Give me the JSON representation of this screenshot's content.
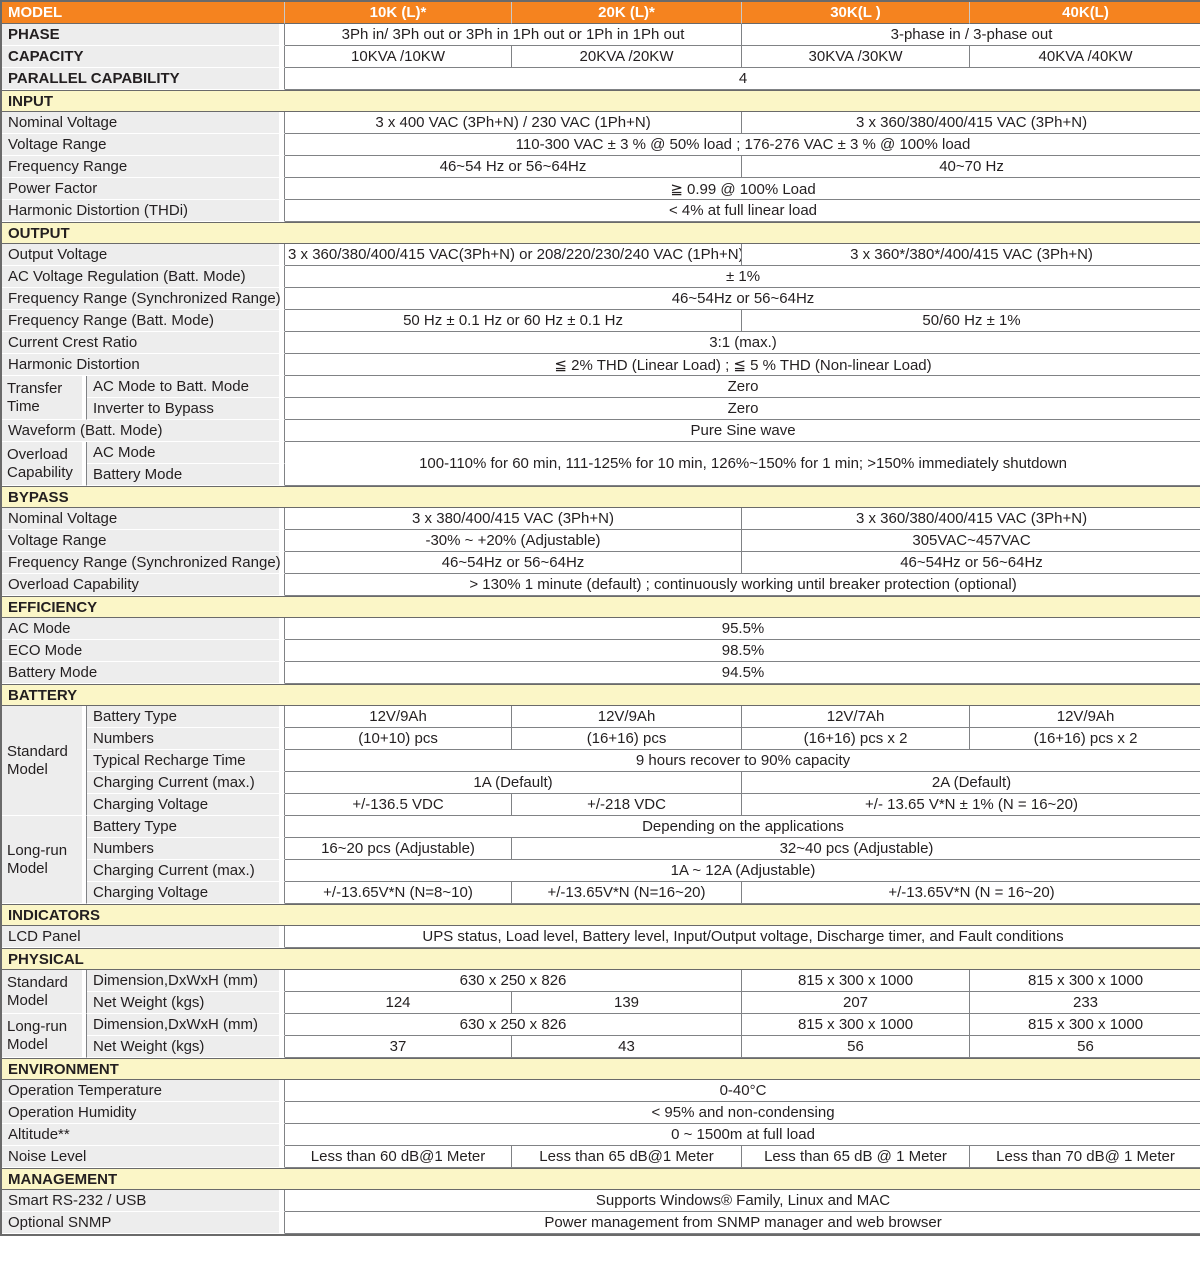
{
  "colors": {
    "header_bg": "#F5831F",
    "header_text": "#FFFFFF",
    "section_bg": "#FBF6C7",
    "label_bg": "#EDEDED",
    "border": "#808285",
    "outer_border": "#6A6A6A",
    "text": "#231F20"
  },
  "header": {
    "label": "MODEL",
    "models": [
      "10K (L)*",
      "20K (L)*",
      "30K(L )",
      "40K(L)"
    ]
  },
  "sections": [
    {
      "title": null,
      "bold": true,
      "rows": [
        {
          "label": "PHASE",
          "cells": [
            {
              "t": "3Ph in/ 3Ph out or 3Ph in 1Ph out or 1Ph in 1Ph out",
              "s": 2
            },
            {
              "t": "3-phase in / 3-phase out",
              "s": 2
            }
          ]
        },
        {
          "label": "CAPACITY",
          "cells": [
            {
              "t": "10KVA /10KW"
            },
            {
              "t": "20KVA /20KW"
            },
            {
              "t": "30KVA /30KW"
            },
            {
              "t": "40KVA /40KW"
            }
          ]
        },
        {
          "label": "PARALLEL CAPABILITY",
          "cells": [
            {
              "t": "4",
              "s": 4
            }
          ]
        }
      ]
    },
    {
      "title": "INPUT",
      "rows": [
        {
          "label": "Nominal Voltage",
          "cells": [
            {
              "t": "3 x 400 VAC (3Ph+N) / 230 VAC (1Ph+N)",
              "s": 2
            },
            {
              "t": "3 x 360/380/400/415 VAC  (3Ph+N)",
              "s": 2
            }
          ]
        },
        {
          "label": "Voltage Range",
          "cells": [
            {
              "t": "110-300 VAC ± 3 % @ 50% load ; 176-276 VAC ± 3 % @ 100% load",
              "s": 4
            }
          ]
        },
        {
          "label": "Frequency Range",
          "cells": [
            {
              "t": "46~54 Hz or 56~64Hz",
              "s": 2
            },
            {
              "t": "40~70 Hz",
              "s": 2
            }
          ]
        },
        {
          "label": "Power Factor",
          "cells": [
            {
              "t": "≧  0.99  @ 100% Load",
              "s": 4
            }
          ]
        },
        {
          "label": "Harmonic Distortion (THDi)",
          "cells": [
            {
              "t": "< 4% at full linear load",
              "s": 4
            }
          ]
        }
      ]
    },
    {
      "title": "OUTPUT",
      "rows": [
        {
          "label": "Output Voltage",
          "cells": [
            {
              "t": "3 x 360/380/400/415 VAC(3Ph+N) or 208/220/230/240 VAC (1Ph+N)",
              "s": 2
            },
            {
              "t": "3 x 360*/380*/400/415 VAC (3Ph+N)",
              "s": 2
            }
          ]
        },
        {
          "label": "AC Voltage Regulation (Batt. Mode)",
          "cells": [
            {
              "t": "± 1%",
              "s": 4
            }
          ]
        },
        {
          "label": "Frequency Range (Synchronized Range)",
          "cells": [
            {
              "t": "46~54Hz or 56~64Hz",
              "s": 4
            }
          ]
        },
        {
          "label": "Frequency Range (Batt. Mode)",
          "cells": [
            {
              "t": "50 Hz ± 0.1 Hz or 60 Hz ± 0.1 Hz",
              "s": 2
            },
            {
              "t": "50/60 Hz ± 1%",
              "s": 2
            }
          ]
        },
        {
          "label": "Current Crest Ratio",
          "cells": [
            {
              "t": "3:1 (max.)",
              "s": 4
            }
          ]
        },
        {
          "label": "Harmonic Distortion",
          "cells": [
            {
              "t": "≦ 2% THD (Linear Load) ; ≦ 5 % THD (Non-linear Load)",
              "s": 4
            }
          ]
        },
        {
          "group": "Transfer Time",
          "grows": 2,
          "label": "AC Mode to Batt. Mode",
          "cells": [
            {
              "t": "Zero",
              "s": 4
            }
          ]
        },
        {
          "label": "Inverter to Bypass",
          "cells": [
            {
              "t": "Zero",
              "s": 4
            }
          ]
        },
        {
          "label": "Waveform (Batt. Mode)",
          "cells": [
            {
              "t": "Pure Sine wave",
              "s": 4
            }
          ]
        },
        {
          "group": "Overload Capability",
          "grows": 2,
          "label": "AC Mode",
          "cells": [
            {
              "t": "100-110% for 60 min, 111-125% for 10 min, 126%~150% for 1 min; >150% immediately shutdown",
              "s": 4,
              "r": 2
            }
          ]
        },
        {
          "label": "Battery Mode",
          "cells": []
        }
      ]
    },
    {
      "title": "BYPASS",
      "rows": [
        {
          "label": "Nominal Voltage",
          "cells": [
            {
              "t": "3 x 380/400/415 VAC (3Ph+N)",
              "s": 2
            },
            {
              "t": "3 x 360/380/400/415 VAC (3Ph+N)",
              "s": 2
            }
          ]
        },
        {
          "label": "Voltage Range",
          "cells": [
            {
              "t": "-30% ~ +20% (Adjustable)",
              "s": 2
            },
            {
              "t": "305VAC~457VAC",
              "s": 2
            }
          ]
        },
        {
          "label": "Frequency Range (Synchronized Range)",
          "cells": [
            {
              "t": "46~54Hz or 56~64Hz",
              "s": 2
            },
            {
              "t": "46~54Hz or 56~64Hz",
              "s": 2
            }
          ]
        },
        {
          "label": "Overload Capability",
          "cells": [
            {
              "t": "> 130% 1 minute (default) ; continuously working until breaker protection (optional)",
              "s": 4
            }
          ]
        }
      ]
    },
    {
      "title": "EFFICIENCY",
      "rows": [
        {
          "label": "AC Mode",
          "cells": [
            {
              "t": "95.5%",
              "s": 4
            }
          ]
        },
        {
          "label": "ECO Mode",
          "cells": [
            {
              "t": "98.5%",
              "s": 4
            }
          ]
        },
        {
          "label": "Battery Mode",
          "cells": [
            {
              "t": "94.5%",
              "s": 4
            }
          ]
        }
      ]
    },
    {
      "title": "BATTERY",
      "rows": [
        {
          "group": "Standard Model",
          "grows": 5,
          "label": "Battery Type",
          "cells": [
            {
              "t": "12V/9Ah"
            },
            {
              "t": "12V/9Ah"
            },
            {
              "t": "12V/7Ah"
            },
            {
              "t": "12V/9Ah"
            }
          ]
        },
        {
          "label": "Numbers",
          "cells": [
            {
              "t": "(10+10) pcs"
            },
            {
              "t": "(16+16) pcs"
            },
            {
              "t": "(16+16) pcs x 2"
            },
            {
              "t": "(16+16) pcs x 2"
            }
          ]
        },
        {
          "label": "Typical Recharge Time",
          "cells": [
            {
              "t": "9 hours recover to 90% capacity",
              "s": 4
            }
          ]
        },
        {
          "label": "Charging Current (max.)",
          "cells": [
            {
              "t": "1A (Default)",
              "s": 2
            },
            {
              "t": "2A (Default)",
              "s": 2
            }
          ]
        },
        {
          "label": "Charging Voltage",
          "cells": [
            {
              "t": "+/-136.5 VDC"
            },
            {
              "t": "+/-218 VDC"
            },
            {
              "t": "+/- 13.65 V*N ± 1% (N = 16~20)",
              "s": 2
            }
          ]
        },
        {
          "group": "Long-run Model",
          "grows": 4,
          "label": "Battery Type",
          "cells": [
            {
              "t": "Depending on the applications",
              "s": 4
            }
          ]
        },
        {
          "label": "Numbers",
          "cells": [
            {
              "t": "16~20 pcs (Adjustable)"
            },
            {
              "t": "32~40 pcs (Adjustable)",
              "s": 3
            }
          ]
        },
        {
          "label": "Charging Current (max.)",
          "cells": [
            {
              "t": "1A ~ 12A (Adjustable)",
              "s": 4
            }
          ]
        },
        {
          "label": "Charging Voltage",
          "cells": [
            {
              "t": "+/-13.65V*N (N=8~10)"
            },
            {
              "t": "+/-13.65V*N (N=16~20)"
            },
            {
              "t": "+/-13.65V*N (N = 16~20)",
              "s": 2
            }
          ]
        }
      ]
    },
    {
      "title": "INDICATORS",
      "rows": [
        {
          "label": "LCD Panel",
          "cells": [
            {
              "t": "UPS status, Load level, Battery level, Input/Output voltage, Discharge timer, and Fault conditions",
              "s": 4
            }
          ]
        }
      ]
    },
    {
      "title": "PHYSICAL",
      "rows": [
        {
          "group": "Standard Model",
          "grows": 2,
          "label": "Dimension,DxWxH (mm)",
          "cells": [
            {
              "t": "630 x 250 x 826",
              "s": 2
            },
            {
              "t": "815 x 300 x 1000"
            },
            {
              "t": "815 x 300 x 1000"
            }
          ]
        },
        {
          "label": "Net Weight (kgs)",
          "cells": [
            {
              "t": "124"
            },
            {
              "t": "139"
            },
            {
              "t": "207"
            },
            {
              "t": "233"
            }
          ]
        },
        {
          "group": "Long-run Model",
          "grows": 2,
          "label": "Dimension,DxWxH (mm)",
          "cells": [
            {
              "t": "630 x 250 x 826",
              "s": 2
            },
            {
              "t": "815 x 300 x 1000"
            },
            {
              "t": "815 x 300 x 1000"
            }
          ]
        },
        {
          "label": "Net Weight (kgs)",
          "cells": [
            {
              "t": "37"
            },
            {
              "t": "43"
            },
            {
              "t": "56"
            },
            {
              "t": "56"
            }
          ]
        }
      ]
    },
    {
      "title": "ENVIRONMENT",
      "rows": [
        {
          "label": "Operation Temperature",
          "cells": [
            {
              "t": "0-40°C",
              "s": 4
            }
          ]
        },
        {
          "label": "Operation Humidity",
          "cells": [
            {
              "t": "< 95% and non-condensing",
              "s": 4
            }
          ]
        },
        {
          "label": "Altitude**",
          "cells": [
            {
              "t": "0 ~ 1500m at full load",
              "s": 4
            }
          ]
        },
        {
          "label": "Noise Level",
          "cells": [
            {
              "t": "Less than 60 dB@1 Meter"
            },
            {
              "t": "Less than 65 dB@1 Meter"
            },
            {
              "t": "Less than 65 dB @ 1 Meter"
            },
            {
              "t": "Less than 70 dB@ 1 Meter"
            }
          ]
        }
      ]
    },
    {
      "title": "MANAGEMENT",
      "rows": [
        {
          "label": "Smart RS-232 / USB",
          "cells": [
            {
              "t": "Supports Windows® Family, Linux and MAC",
              "s": 4
            }
          ]
        },
        {
          "label": "Optional SNMP",
          "cells": [
            {
              "t": "Power management from SNMP manager and web browser",
              "s": 4
            }
          ]
        }
      ]
    }
  ]
}
